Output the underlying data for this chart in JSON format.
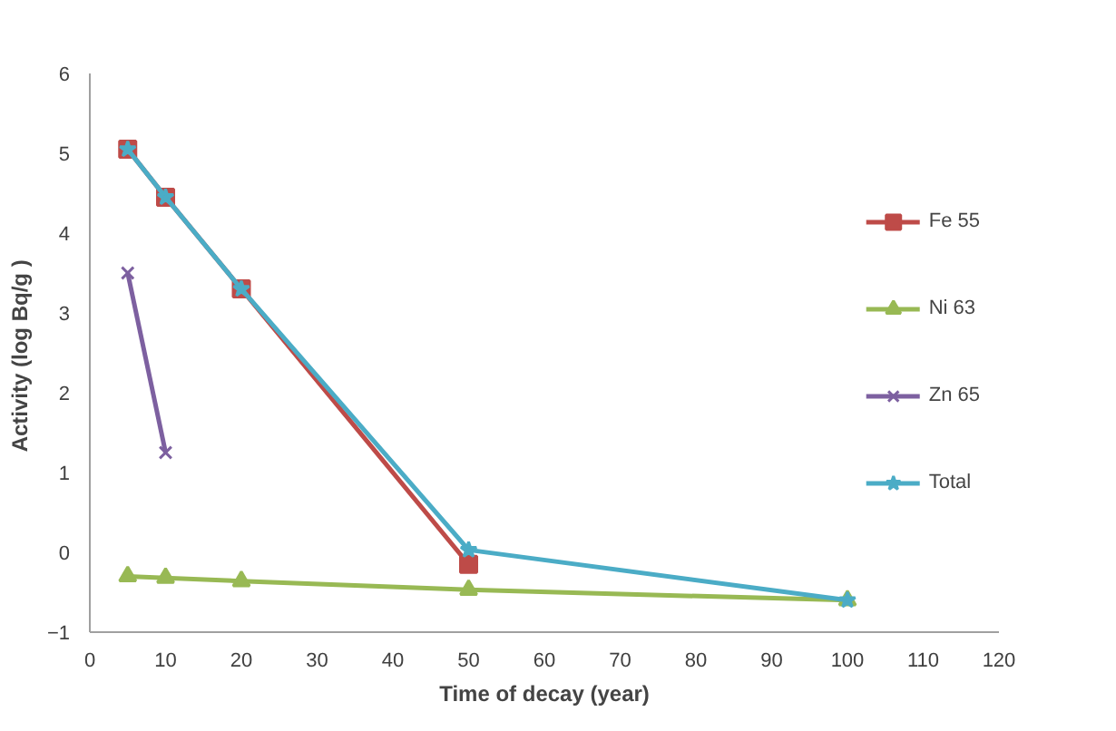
{
  "chart_data": {
    "type": "line",
    "xlabel": "Time of decay (year)",
    "ylabel": "Activity  (log Bq/g )",
    "xlim": [
      0,
      120
    ],
    "ylim": [
      -1,
      6
    ],
    "xticks": [
      0,
      10,
      20,
      30,
      40,
      50,
      60,
      70,
      80,
      90,
      100,
      110,
      120
    ],
    "yticks": [
      -1,
      0,
      1,
      2,
      3,
      4,
      5,
      6
    ],
    "grid": false,
    "legend": "right",
    "series": [
      {
        "name": "Fe 55",
        "color": "#be4b48",
        "marker": "square",
        "x": [
          5,
          10,
          20,
          50
        ],
        "values": [
          5.05,
          4.45,
          3.3,
          -0.15
        ]
      },
      {
        "name": "Ni 63",
        "color": "#98b954",
        "marker": "triangle",
        "x": [
          5,
          10,
          20,
          50,
          100
        ],
        "values": [
          -0.3,
          -0.32,
          -0.36,
          -0.47,
          -0.6
        ]
      },
      {
        "name": "Zn 65",
        "color": "#7d60a0",
        "marker": "cross",
        "x": [
          5,
          10
        ],
        "values": [
          3.5,
          1.25
        ]
      },
      {
        "name": "Total",
        "color": "#4bacc6",
        "marker": "star",
        "x": [
          5,
          10,
          20,
          50,
          100
        ],
        "values": [
          5.05,
          4.45,
          3.3,
          0.03,
          -0.6
        ]
      }
    ]
  }
}
